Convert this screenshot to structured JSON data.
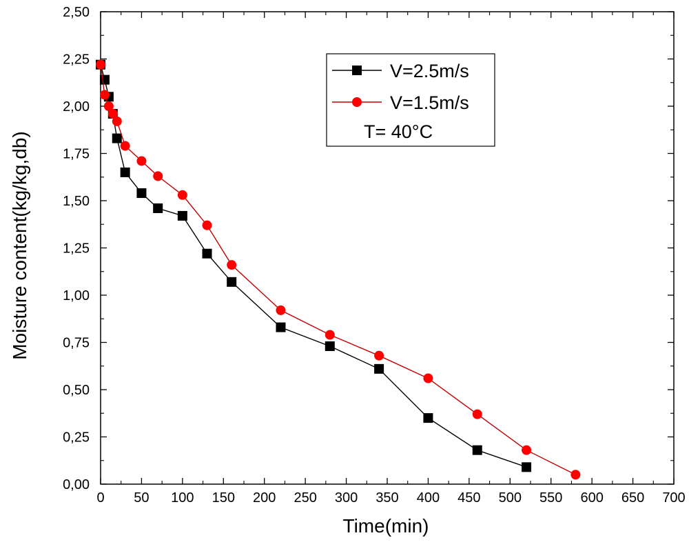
{
  "chart_data": {
    "type": "line",
    "xlabel": "Time(min)",
    "ylabel": "Moisture content(kg/kg,db)",
    "xlim": [
      0,
      700
    ],
    "ylim": [
      0,
      2.5
    ],
    "x_ticks": [
      "0",
      "50",
      "100",
      "150",
      "200",
      "250",
      "300",
      "350",
      "400",
      "450",
      "500",
      "550",
      "600",
      "650",
      "700"
    ],
    "y_ticks": [
      "0,00",
      "0,25",
      "0,50",
      "0,75",
      "1,00",
      "1,25",
      "1,50",
      "1,75",
      "2,00",
      "2,25",
      "2,50"
    ],
    "grid": false,
    "legend_position": "top-right",
    "annotation": "T= 40°C",
    "series": [
      {
        "name": "V=2.5m/s",
        "color": "#000000",
        "marker": "square",
        "x": [
          0,
          5,
          10,
          15,
          20,
          30,
          50,
          70,
          100,
          130,
          160,
          220,
          280,
          340,
          400,
          460,
          520
        ],
        "y": [
          2.22,
          2.14,
          2.05,
          1.96,
          1.83,
          1.65,
          1.54,
          1.46,
          1.42,
          1.22,
          1.07,
          0.83,
          0.73,
          0.61,
          0.35,
          0.18,
          0.09
        ]
      },
      {
        "name": "V=1.5m/s",
        "color": "#ff0000",
        "line_color": "#c00000",
        "marker": "circle",
        "x": [
          0,
          5,
          10,
          15,
          20,
          30,
          50,
          70,
          100,
          130,
          160,
          220,
          280,
          340,
          400,
          460,
          520,
          580
        ],
        "y": [
          2.22,
          2.06,
          2.0,
          1.96,
          1.92,
          1.79,
          1.71,
          1.63,
          1.53,
          1.37,
          1.16,
          0.92,
          0.79,
          0.68,
          0.56,
          0.37,
          0.18,
          0.05
        ]
      }
    ]
  }
}
